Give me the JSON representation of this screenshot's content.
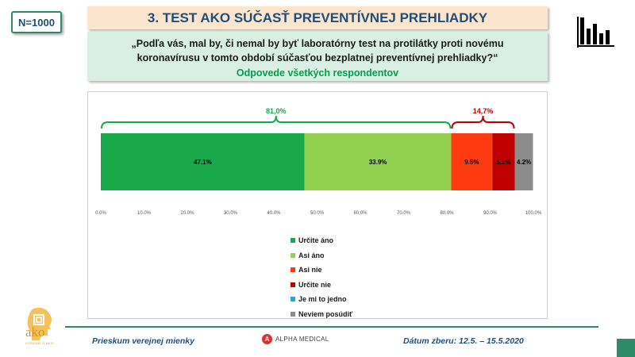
{
  "header": {
    "n_label": "N=1000",
    "title": "3. TEST AKO SÚČASŤ PREVENTÍVNEJ PREHLIADKY"
  },
  "question": {
    "line1": "„Podľa vás, mal by, či nemal by byť laboratórny test na protilátky proti novému",
    "line2": "koronavírusu v tomto období súčasťou bezplatnej preventívnej prehliadky?“",
    "subtitle": "Odpovede všetkých respondentov"
  },
  "chart_data": {
    "type": "bar",
    "orientation": "horizontal-stacked",
    "series": [
      {
        "name": "Určite áno",
        "value": 47.1,
        "label": "47.1%",
        "color": "#19a84a"
      },
      {
        "name": "Asi áno",
        "value": 33.9,
        "label": "33.9%",
        "color": "#92d050"
      },
      {
        "name": "Asi nie",
        "value": 9.5,
        "label": "9.5%",
        "color": "#ff3a10"
      },
      {
        "name": "Určite nie",
        "value": 5.2,
        "label": "5.2%",
        "color": "#c00000"
      },
      {
        "name": "Je mi to jedno",
        "value": 0,
        "label": "",
        "color": "#1fa7e0"
      },
      {
        "name": "Neviem posúdiť",
        "value": 4.2,
        "label": "4.2%",
        "color": "#8c8c8c"
      }
    ],
    "brackets": [
      {
        "label": "81,0%",
        "from": 0,
        "to": 81.0,
        "color": "#19a84a"
      },
      {
        "label": "14,7%",
        "from": 81.0,
        "to": 95.7,
        "color": "#c00000"
      }
    ],
    "xlim": [
      0,
      100
    ],
    "xticks": [
      0,
      10,
      20,
      30,
      40,
      50,
      60,
      70,
      80,
      90,
      100
    ],
    "xtick_labels": [
      "0.0%",
      "10.0%",
      "20.0%",
      "30.0%",
      "40.0%",
      "50.0%",
      "60.0%",
      "70.0%",
      "80.0%",
      "90.0%",
      "100.0%"
    ],
    "legend_position": "bottom"
  },
  "footer": {
    "left": "Prieskum verejnej mienky",
    "sponsor": "ALPHA MEDICAL",
    "sponsor_initial": "A",
    "right": "Dátum zberu: 12.5. – 15.5.2020",
    "logo_text": "ako",
    "logo_sub": "VÝSKUM O AKO"
  },
  "colors": {
    "accent": "#2e8b6a",
    "title_text": "#1f4e79",
    "title_bg": "#fbe5cf",
    "question_bg": "#d9efe3"
  }
}
